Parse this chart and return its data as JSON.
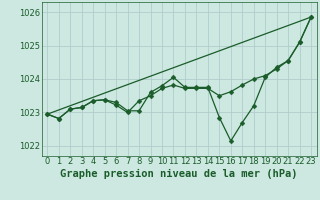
{
  "xlabel": "Graphe pression niveau de la mer (hPa)",
  "background_color": "#cce8e0",
  "grid_color": "#b0cccc",
  "line_color": "#1a5c2a",
  "xlim": [
    -0.5,
    23.5
  ],
  "ylim": [
    1021.7,
    1026.3
  ],
  "yticks": [
    1022,
    1023,
    1024,
    1025,
    1026
  ],
  "xticks": [
    0,
    1,
    2,
    3,
    4,
    5,
    6,
    7,
    8,
    9,
    10,
    11,
    12,
    13,
    14,
    15,
    16,
    17,
    18,
    19,
    20,
    21,
    22,
    23
  ],
  "series1_x": [
    0,
    1,
    2,
    3,
    4,
    5,
    6,
    7,
    8,
    9,
    10,
    11,
    12,
    13,
    14,
    15,
    16,
    17,
    18,
    19,
    20,
    21,
    22,
    23
  ],
  "series1_y": [
    1022.95,
    1022.82,
    1023.1,
    1023.15,
    1023.35,
    1023.38,
    1023.3,
    1023.05,
    1023.05,
    1023.6,
    1023.8,
    1024.05,
    1023.75,
    1023.75,
    1023.75,
    1022.85,
    1022.15,
    1022.7,
    1023.2,
    1024.05,
    1024.35,
    1024.55,
    1025.1,
    1025.85
  ],
  "series2_x": [
    0,
    1,
    2,
    3,
    4,
    5,
    6,
    7,
    8,
    9,
    10,
    11,
    12,
    13,
    14,
    15,
    16,
    17,
    18,
    19,
    20,
    21,
    22,
    23
  ],
  "series2_y": [
    1022.95,
    1022.82,
    1023.1,
    1023.15,
    1023.35,
    1023.38,
    1023.22,
    1023.0,
    1023.35,
    1023.5,
    1023.72,
    1023.82,
    1023.72,
    1023.72,
    1023.72,
    1023.5,
    1023.62,
    1023.82,
    1024.0,
    1024.1,
    1024.3,
    1024.55,
    1025.1,
    1025.85
  ],
  "series3_x": [
    0,
    23
  ],
  "series3_y": [
    1022.95,
    1025.85
  ],
  "tick_fontsize": 6,
  "label_fontsize": 7.5,
  "marker": "D",
  "marker_size": 2.5,
  "linewidth": 0.9
}
